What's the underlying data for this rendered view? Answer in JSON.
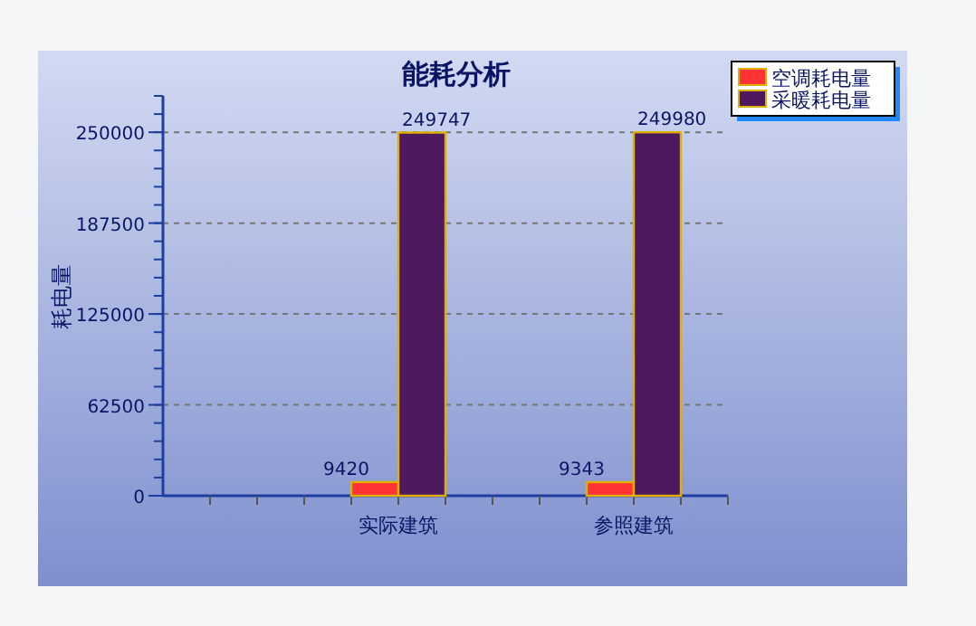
{
  "chart_data": {
    "type": "bar",
    "title": "能耗分析",
    "ylabel": "耗电量",
    "categories": [
      "实际建筑",
      "参照建筑"
    ],
    "series": [
      {
        "name": "空调耗电量",
        "color": "#ff3333",
        "values": [
          9420,
          9343
        ]
      },
      {
        "name": "采暖耗电量",
        "color": "#4d185e",
        "values": [
          249747,
          249980
        ]
      }
    ],
    "ylim": [
      0,
      275000
    ],
    "yticks": [
      0,
      62500,
      125000,
      187500,
      250000
    ],
    "grid": "y",
    "legend": "top right",
    "data_labels": true
  }
}
